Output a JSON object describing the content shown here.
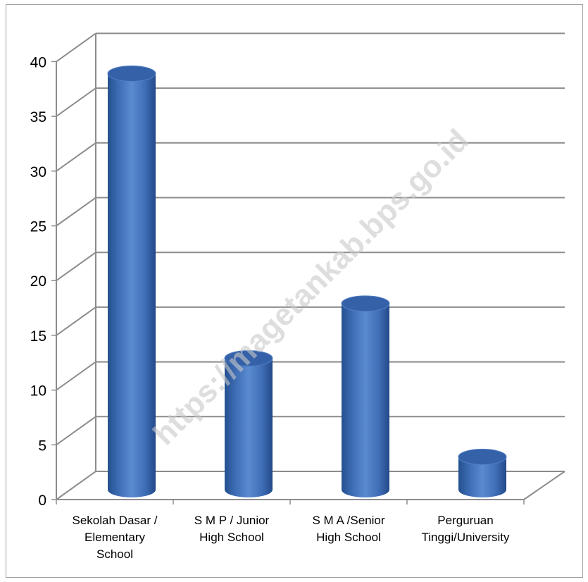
{
  "chart_data": {
    "type": "bar",
    "style": "3d-cylinder",
    "categories": [
      [
        "Sekolah Dasar /",
        "Elementary",
        "School"
      ],
      [
        "S M P / Junior",
        "High School"
      ],
      [
        "S  M  A /Senior",
        "High School"
      ],
      [
        "Perguruan",
        "Tinggi/University"
      ]
    ],
    "series": [
      {
        "values": [
          38,
          12,
          17,
          3
        ]
      }
    ],
    "ylim": [
      0,
      40
    ],
    "yticks": [
      0,
      5,
      10,
      15,
      20,
      25,
      30,
      35,
      40
    ],
    "grid": true,
    "legend": "none",
    "colors": {
      "bar": "#4a78c0",
      "bar_dark": "#24508f",
      "bar_top": "#3561a8",
      "grid": "#8c8c8c",
      "frame": "#999999"
    }
  },
  "watermark": "https://magetankab.bps.go.id"
}
